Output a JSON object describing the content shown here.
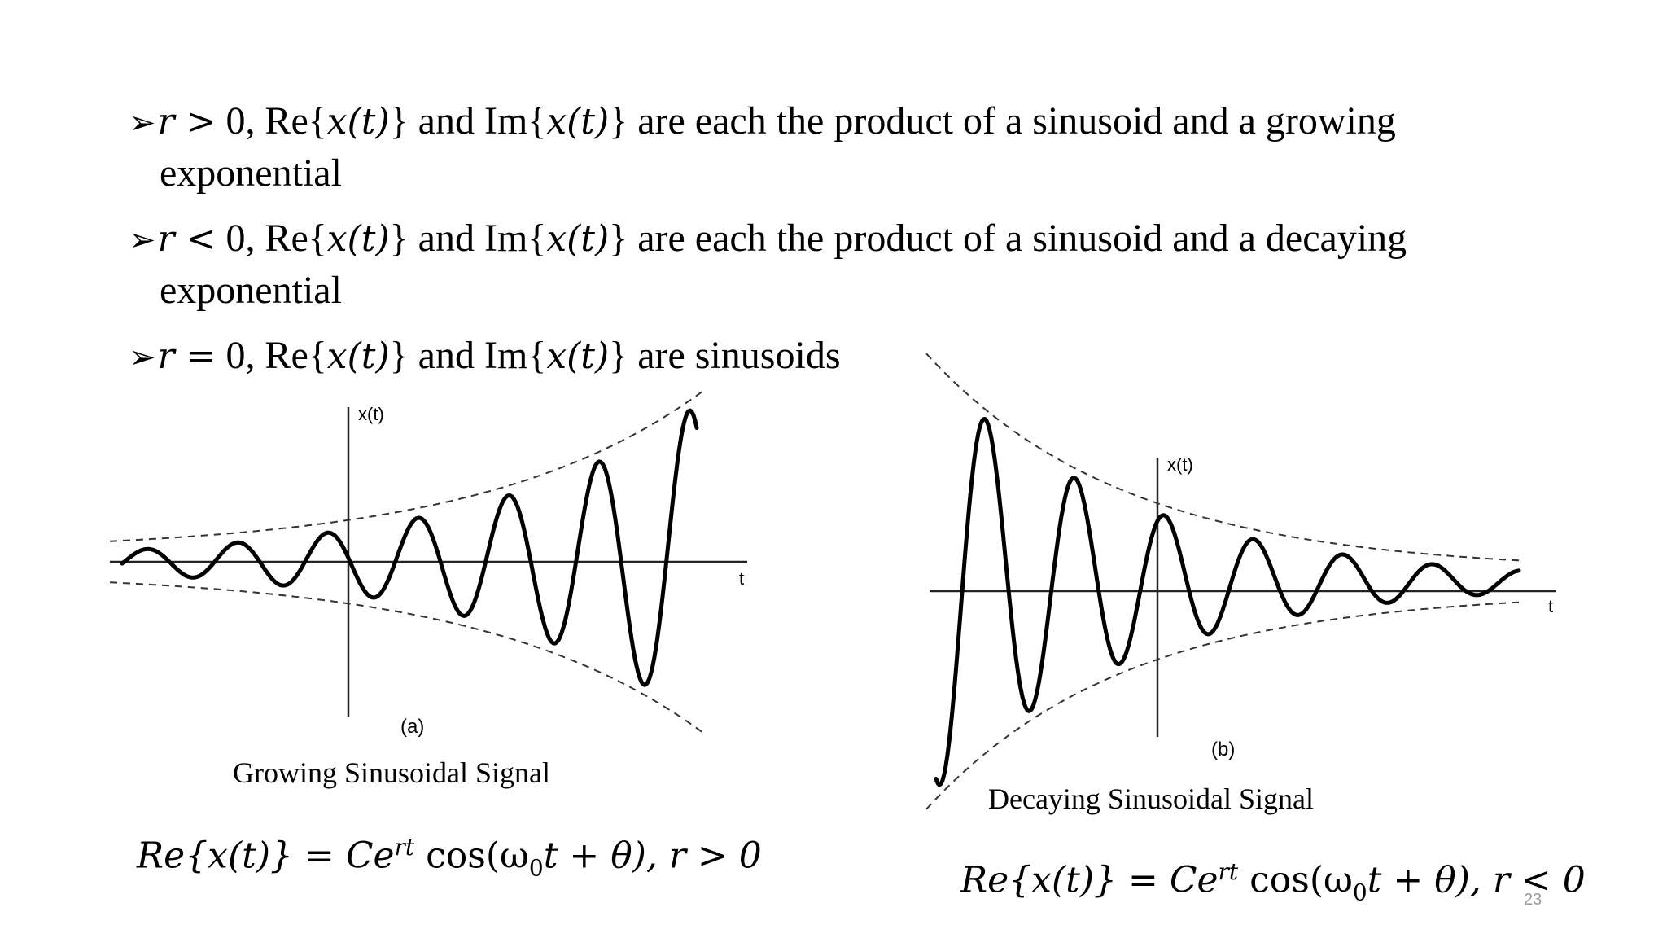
{
  "bullets": [
    {
      "var": "r",
      "rel": ">",
      "text_a": " 0, Re{",
      "expr": "x(t)",
      "text_b": "} and Im{",
      "text_c": "} are each the product of a sinusoid and a growing",
      "cont": "exponential"
    },
    {
      "var": "r",
      "rel": "<",
      "text_a": " 0, Re{",
      "expr": "x(t)",
      "text_b": "} and Im{",
      "text_c": "} are each the product of a sinusoid and a decaying",
      "cont": "exponential"
    },
    {
      "var": "r",
      "rel": "=",
      "text_a": " 0, Re{",
      "expr": "x(t)",
      "text_b": "} and Im{",
      "text_c": "} are sinusoids",
      "cont": ""
    }
  ],
  "figure_a": {
    "y_label": "x(t)",
    "x_label": "t",
    "panel_label": "(a)",
    "caption": "Growing Sinusoidal Signal"
  },
  "figure_b": {
    "y_label": "x(t)",
    "x_label": "t",
    "panel_label": "(b)",
    "caption": "Decaying Sinusoidal Signal"
  },
  "formula_a": {
    "lhs": "Re{x(t)} = Ce",
    "sup": "rt",
    "mid": " cos(ω",
    "sub": "0",
    "rhs": "t + θ), r > 0"
  },
  "formula_b": {
    "lhs": "Re{x(t)} = Ce",
    "sup": "rt",
    "mid": " cos(ω",
    "sub": "0",
    "rhs": "t + θ), r < 0"
  },
  "page_number": "23"
}
